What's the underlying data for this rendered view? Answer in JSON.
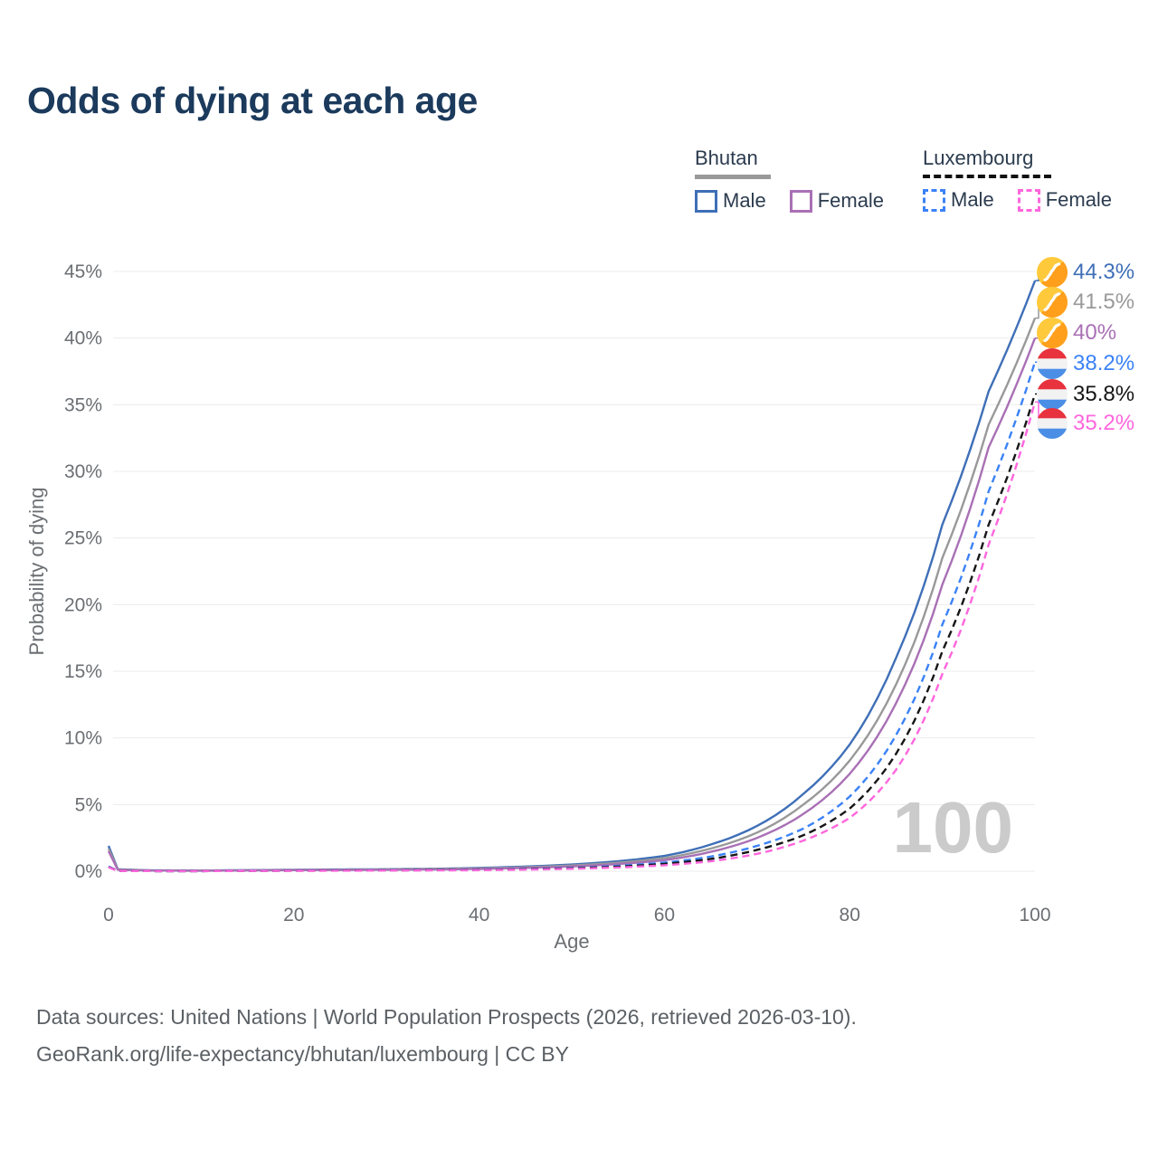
{
  "title": "Odds of dying at each age",
  "legend": {
    "groups": [
      {
        "name": "Bhutan",
        "line_style": "solid",
        "line_color": "#999999",
        "items": [
          {
            "label": "Male",
            "color": "#3f6fb7",
            "dashed": false
          },
          {
            "label": "Female",
            "color": "#a970b5",
            "dashed": false
          }
        ]
      },
      {
        "name": "Luxembourg",
        "line_style": "dashed",
        "line_color": "#111111",
        "items": [
          {
            "label": "Male",
            "color": "#3b82f6",
            "dashed": true
          },
          {
            "label": "Female",
            "color": "#ff66dd",
            "dashed": true
          }
        ]
      }
    ]
  },
  "chart_data": {
    "type": "line",
    "title": "Odds of dying at each age",
    "xlabel": "Age",
    "ylabel": "Probability of dying",
    "xlim": [
      0,
      100
    ],
    "ylim": [
      0,
      45
    ],
    "grid": "horizontal",
    "legend_position": "top-right",
    "watermark": "100",
    "x_ticks": [
      "0",
      "20",
      "40",
      "60",
      "80",
      "100"
    ],
    "y_ticks": [
      "0%",
      "5%",
      "10%",
      "15%",
      "20%",
      "25%",
      "30%",
      "35%",
      "40%",
      "45%"
    ],
    "ages": [
      0,
      1,
      5,
      10,
      15,
      20,
      25,
      30,
      35,
      40,
      45,
      50,
      55,
      60,
      65,
      70,
      75,
      80,
      85,
      90,
      95,
      100
    ],
    "series": [
      {
        "name": "Bhutan Male",
        "country": "Bhutan",
        "sex": "Male",
        "color": "#3f6fb7",
        "dash": "solid",
        "flag_icon": "bhutan-flag-icon",
        "end_label": "44.3%",
        "end_value": 44.3,
        "values": [
          1.9,
          0.15,
          0.06,
          0.05,
          0.08,
          0.11,
          0.13,
          0.15,
          0.18,
          0.25,
          0.35,
          0.5,
          0.75,
          1.15,
          2.0,
          3.4,
          5.8,
          9.5,
          16,
          26,
          36,
          44.3
        ]
      },
      {
        "name": "Bhutan Both sexes",
        "country": "Bhutan",
        "sex": "Both",
        "color": "#999999",
        "dash": "solid",
        "flag_icon": "bhutan-flag-icon",
        "end_label": "41.5%",
        "end_value": 41.5,
        "values": [
          1.7,
          0.13,
          0.05,
          0.04,
          0.07,
          0.09,
          0.11,
          0.13,
          0.16,
          0.21,
          0.3,
          0.43,
          0.64,
          0.98,
          1.7,
          2.9,
          5.0,
          8.3,
          14,
          23.5,
          33.5,
          41.5
        ]
      },
      {
        "name": "Bhutan Female",
        "country": "Bhutan",
        "sex": "Female",
        "color": "#a970b5",
        "dash": "solid",
        "flag_icon": "bhutan-flag-icon",
        "end_label": "40%",
        "end_value": 40,
        "values": [
          1.5,
          0.11,
          0.05,
          0.04,
          0.06,
          0.08,
          0.09,
          0.11,
          0.13,
          0.17,
          0.25,
          0.36,
          0.54,
          0.83,
          1.45,
          2.5,
          4.3,
          7.3,
          12.6,
          21.5,
          31.8,
          40
        ]
      },
      {
        "name": "Luxembourg Male",
        "country": "Luxembourg",
        "sex": "Male",
        "color": "#3b82f6",
        "dash": "dashed",
        "flag_icon": "luxembourg-flag-icon",
        "end_label": "38.2%",
        "end_value": 38.2,
        "values": [
          0.35,
          0.03,
          0.01,
          0.01,
          0.03,
          0.05,
          0.06,
          0.07,
          0.09,
          0.12,
          0.17,
          0.25,
          0.4,
          0.65,
          1.1,
          1.9,
          3.2,
          5.6,
          10.2,
          18.5,
          28.5,
          38.2
        ]
      },
      {
        "name": "Luxembourg Both sexes",
        "country": "Luxembourg",
        "sex": "Both",
        "color": "#161616",
        "dash": "dashed",
        "flag_icon": "luxembourg-flag-icon",
        "end_label": "35.8%",
        "end_value": 35.8,
        "values": [
          0.32,
          0.03,
          0.01,
          0.01,
          0.02,
          0.04,
          0.05,
          0.06,
          0.08,
          0.1,
          0.15,
          0.22,
          0.34,
          0.55,
          0.92,
          1.6,
          2.7,
          4.7,
          8.8,
          16.5,
          26,
          35.8
        ]
      },
      {
        "name": "Luxembourg Female",
        "country": "Luxembourg",
        "sex": "Female",
        "color": "#ff66dd",
        "dash": "dashed",
        "flag_icon": "luxembourg-flag-icon",
        "end_label": "35.2%",
        "end_value": 35.2,
        "values": [
          0.3,
          0.02,
          0.01,
          0.01,
          0.02,
          0.03,
          0.04,
          0.05,
          0.06,
          0.08,
          0.12,
          0.18,
          0.28,
          0.45,
          0.75,
          1.3,
          2.3,
          4.0,
          7.6,
          14.8,
          24.5,
          35.2
        ]
      }
    ]
  },
  "footer": {
    "line1": "Data sources: United Nations | World Population Prospects (2026, retrieved 2026-03-10).",
    "line2": "GeoRank.org/life-expectancy/bhutan/luxembourg | CC BY"
  }
}
